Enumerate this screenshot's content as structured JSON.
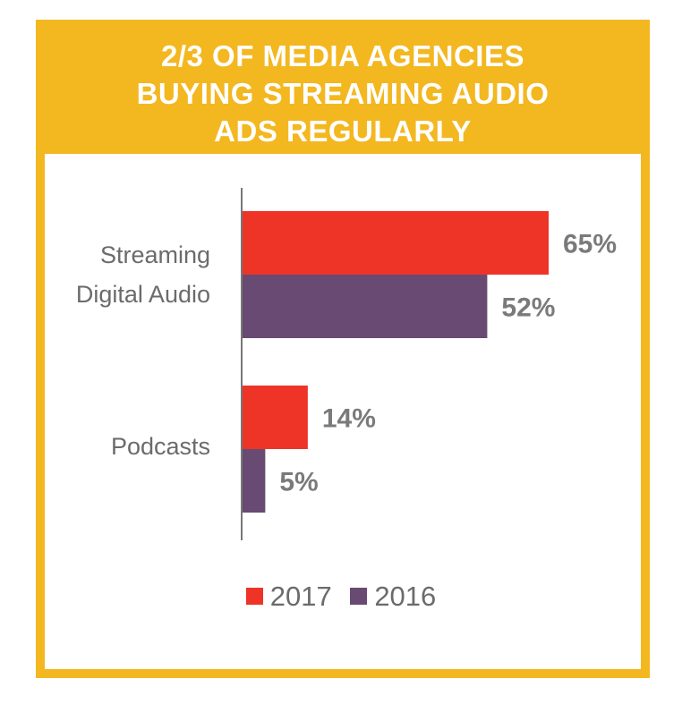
{
  "title_lines": [
    "2/3 OF MEDIA AGENCIES",
    "BUYING STREAMING AUDIO",
    "ADS REGULARLY"
  ],
  "colors": {
    "frame": "#f3b720",
    "series_2017": "#ee3427",
    "series_2016": "#684a72"
  },
  "chart_data": {
    "type": "bar",
    "orientation": "horizontal",
    "title": "2/3 OF MEDIA AGENCIES BUYING STREAMING AUDIO ADS REGULARLY",
    "categories": [
      {
        "label_lines": [
          "Streaming",
          "Digital Audio"
        ],
        "label": "Streaming Digital Audio"
      },
      {
        "label_lines": [
          "Podcasts"
        ],
        "label": "Podcasts"
      }
    ],
    "series": [
      {
        "name": "2017",
        "color": "#ee3427",
        "values": [
          65,
          14
        ],
        "value_labels": [
          "65%",
          "14%"
        ]
      },
      {
        "name": "2016",
        "color": "#684a72",
        "values": [
          52,
          5
        ],
        "value_labels": [
          "52%",
          "5%"
        ]
      }
    ],
    "xlim": [
      0,
      65
    ],
    "grid": false,
    "legend_position": "bottom"
  }
}
